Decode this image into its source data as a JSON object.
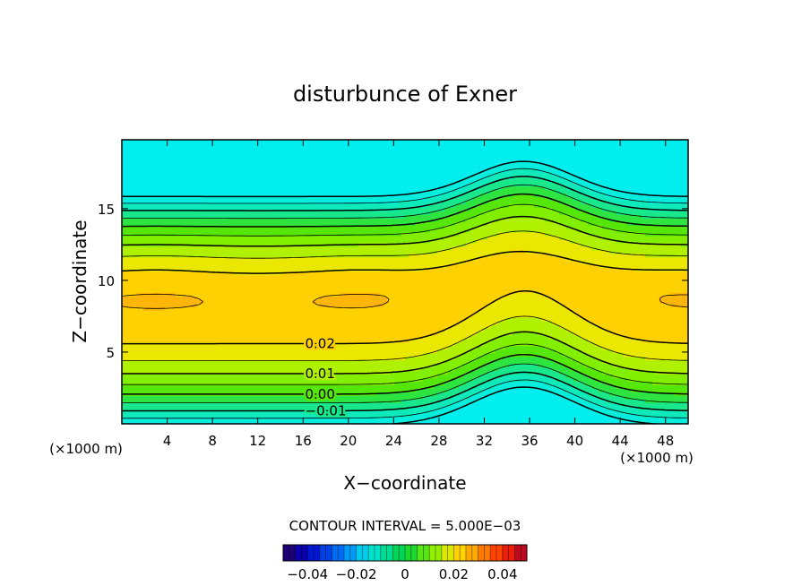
{
  "chart_data": {
    "type": "heatmap",
    "title": "disturbunce of Exner",
    "xlabel": "X−coordinate",
    "ylabel": "Z−coordinate",
    "xunit_left": "(×1000 m)",
    "xunit_right": "(×1000 m)",
    "x_ticks": [
      4,
      8,
      12,
      16,
      20,
      24,
      28,
      32,
      36,
      40,
      44,
      48
    ],
    "x_tick_labels": [
      "4",
      "8",
      "12",
      "16",
      "20",
      "24",
      "28",
      "32",
      "36",
      "40",
      "44",
      "48"
    ],
    "y_ticks": [
      5,
      10,
      15
    ],
    "y_tick_labels": [
      "5",
      "10",
      "15"
    ],
    "xlim": [
      0,
      50
    ],
    "ylim": [
      0,
      19.8
    ],
    "contour_interval_text": "CONTOUR INTERVAL = 5.000E−03",
    "contour_interval": 0.005,
    "contour_labels": [
      {
        "text": "0.02",
        "value": 0.02,
        "x": 17.5
      },
      {
        "text": "0.01",
        "value": 0.01,
        "x": 17.5
      },
      {
        "text": "0.00",
        "value": 0.0,
        "x": 17.5
      },
      {
        "text": "−0.01",
        "value": -0.01,
        "x": 18.0
      }
    ],
    "colorbar": {
      "range": [
        -0.05,
        0.05
      ],
      "ticks": [
        -0.04,
        -0.02,
        0,
        0.02,
        0.04
      ],
      "tick_labels": [
        "−0.04",
        "−0.02",
        "0",
        "0.02",
        "0.04"
      ]
    },
    "field_levels": [
      -0.02,
      -0.015,
      -0.01,
      -0.005,
      0.0,
      0.005,
      0.01,
      0.015,
      0.02,
      0.025,
      0.03,
      0.035,
      0.04
    ],
    "grid": false,
    "colors": {
      "cyan": "#22e8e8",
      "green": "#44ee00",
      "yellow": "#ffe600",
      "orange": "#ff9a10"
    }
  }
}
